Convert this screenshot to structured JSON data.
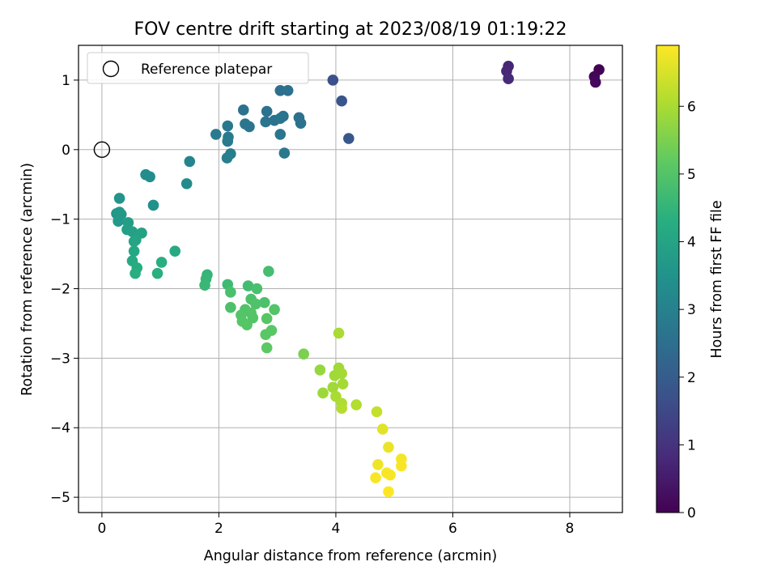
{
  "chart_data": {
    "type": "scatter",
    "title": "FOV centre drift starting at 2023/08/19 01:19:22",
    "xlabel": "Angular distance from reference (arcmin)",
    "ylabel": "Rotation from reference (arcmin)",
    "xlim": [
      -0.4,
      8.9
    ],
    "ylim": [
      -5.22,
      1.5
    ],
    "xticks": [
      0,
      2,
      4,
      6,
      8
    ],
    "yticks": [
      -5,
      -4,
      -3,
      -2,
      -1,
      0,
      1
    ],
    "grid": true,
    "legend": {
      "position": "top-left",
      "entries": [
        "Reference platepar"
      ]
    },
    "reference_point": {
      "x": 0,
      "y": 0
    },
    "colorbar": {
      "label": "Hours from first FF file",
      "colormap": "viridis",
      "range": [
        0,
        6.9
      ],
      "ticks": [
        0,
        1,
        2,
        3,
        4,
        5,
        6
      ]
    },
    "points": [
      {
        "x": 8.5,
        "y": 1.15,
        "c": 0.05
      },
      {
        "x": 8.42,
        "y": 1.05,
        "c": 0.1
      },
      {
        "x": 8.44,
        "y": 0.97,
        "c": 0.15
      },
      {
        "x": 6.95,
        "y": 1.2,
        "c": 0.7
      },
      {
        "x": 6.92,
        "y": 1.13,
        "c": 0.75
      },
      {
        "x": 6.95,
        "y": 1.02,
        "c": 0.8
      },
      {
        "x": 3.95,
        "y": 1.0,
        "c": 1.7
      },
      {
        "x": 4.1,
        "y": 0.7,
        "c": 1.8
      },
      {
        "x": 4.22,
        "y": 0.16,
        "c": 1.9
      },
      {
        "x": 3.05,
        "y": 0.85,
        "c": 2.5
      },
      {
        "x": 3.18,
        "y": 0.85,
        "c": 2.55
      },
      {
        "x": 2.42,
        "y": 0.57,
        "c": 2.6
      },
      {
        "x": 2.82,
        "y": 0.55,
        "c": 2.6
      },
      {
        "x": 3.37,
        "y": 0.46,
        "c": 2.55
      },
      {
        "x": 3.1,
        "y": 0.48,
        "c": 2.6
      },
      {
        "x": 2.95,
        "y": 0.42,
        "c": 2.6
      },
      {
        "x": 3.05,
        "y": 0.45,
        "c": 2.65
      },
      {
        "x": 2.8,
        "y": 0.4,
        "c": 2.65
      },
      {
        "x": 3.4,
        "y": 0.38,
        "c": 2.6
      },
      {
        "x": 2.45,
        "y": 0.37,
        "c": 2.7
      },
      {
        "x": 2.52,
        "y": 0.33,
        "c": 2.7
      },
      {
        "x": 2.15,
        "y": 0.34,
        "c": 2.75
      },
      {
        "x": 3.05,
        "y": 0.22,
        "c": 2.7
      },
      {
        "x": 1.95,
        "y": 0.22,
        "c": 2.8
      },
      {
        "x": 2.16,
        "y": 0.18,
        "c": 2.8
      },
      {
        "x": 2.15,
        "y": 0.12,
        "c": 2.85
      },
      {
        "x": 3.12,
        "y": -0.05,
        "c": 2.75
      },
      {
        "x": 2.2,
        "y": -0.06,
        "c": 2.9
      },
      {
        "x": 2.14,
        "y": -0.12,
        "c": 2.95
      },
      {
        "x": 1.5,
        "y": -0.17,
        "c": 3.1
      },
      {
        "x": 0.75,
        "y": -0.36,
        "c": 3.3
      },
      {
        "x": 0.82,
        "y": -0.39,
        "c": 3.35
      },
      {
        "x": 1.45,
        "y": -0.49,
        "c": 3.25
      },
      {
        "x": 0.3,
        "y": -0.7,
        "c": 3.55
      },
      {
        "x": 0.88,
        "y": -0.8,
        "c": 3.45
      },
      {
        "x": 0.25,
        "y": -0.92,
        "c": 3.6
      },
      {
        "x": 0.3,
        "y": -0.9,
        "c": 3.65
      },
      {
        "x": 0.33,
        "y": -0.93,
        "c": 3.7
      },
      {
        "x": 0.28,
        "y": -1.03,
        "c": 3.7
      },
      {
        "x": 0.45,
        "y": -1.05,
        "c": 3.8
      },
      {
        "x": 0.43,
        "y": -1.15,
        "c": 3.85
      },
      {
        "x": 0.52,
        "y": -1.18,
        "c": 3.9
      },
      {
        "x": 0.68,
        "y": -1.2,
        "c": 3.95
      },
      {
        "x": 0.58,
        "y": -1.3,
        "c": 4.0
      },
      {
        "x": 0.55,
        "y": -1.32,
        "c": 4.05
      },
      {
        "x": 0.55,
        "y": -1.46,
        "c": 4.1
      },
      {
        "x": 1.25,
        "y": -1.46,
        "c": 4.15
      },
      {
        "x": 0.52,
        "y": -1.6,
        "c": 4.2
      },
      {
        "x": 1.02,
        "y": -1.62,
        "c": 4.3
      },
      {
        "x": 0.6,
        "y": -1.7,
        "c": 4.25
      },
      {
        "x": 0.57,
        "y": -1.78,
        "c": 4.3
      },
      {
        "x": 0.95,
        "y": -1.78,
        "c": 4.35
      },
      {
        "x": 1.8,
        "y": -1.8,
        "c": 4.5
      },
      {
        "x": 1.78,
        "y": -1.86,
        "c": 4.55
      },
      {
        "x": 1.76,
        "y": -1.95,
        "c": 4.6
      },
      {
        "x": 2.15,
        "y": -1.94,
        "c": 4.7
      },
      {
        "x": 2.5,
        "y": -1.96,
        "c": 4.75
      },
      {
        "x": 2.85,
        "y": -1.75,
        "c": 4.8
      },
      {
        "x": 2.65,
        "y": -2.0,
        "c": 4.85
      },
      {
        "x": 2.2,
        "y": -2.05,
        "c": 4.85
      },
      {
        "x": 2.55,
        "y": -2.15,
        "c": 4.9
      },
      {
        "x": 2.78,
        "y": -2.2,
        "c": 4.9
      },
      {
        "x": 2.63,
        "y": -2.22,
        "c": 4.95
      },
      {
        "x": 2.2,
        "y": -2.27,
        "c": 4.9
      },
      {
        "x": 2.95,
        "y": -2.3,
        "c": 5.0
      },
      {
        "x": 2.45,
        "y": -2.3,
        "c": 4.95
      },
      {
        "x": 2.55,
        "y": -2.35,
        "c": 5.0
      },
      {
        "x": 2.38,
        "y": -2.38,
        "c": 5.0
      },
      {
        "x": 2.58,
        "y": -2.42,
        "c": 5.0
      },
      {
        "x": 2.82,
        "y": -2.43,
        "c": 5.05
      },
      {
        "x": 2.4,
        "y": -2.47,
        "c": 5.05
      },
      {
        "x": 2.48,
        "y": -2.52,
        "c": 5.05
      },
      {
        "x": 2.9,
        "y": -2.6,
        "c": 5.1
      },
      {
        "x": 2.8,
        "y": -2.66,
        "c": 5.1
      },
      {
        "x": 2.82,
        "y": -2.85,
        "c": 5.15
      },
      {
        "x": 3.45,
        "y": -2.94,
        "c": 5.5
      },
      {
        "x": 4.05,
        "y": -2.64,
        "c": 6.0
      },
      {
        "x": 3.73,
        "y": -3.17,
        "c": 5.8
      },
      {
        "x": 4.05,
        "y": -3.14,
        "c": 5.9
      },
      {
        "x": 4.1,
        "y": -3.22,
        "c": 5.95
      },
      {
        "x": 3.98,
        "y": -3.25,
        "c": 5.9
      },
      {
        "x": 4.12,
        "y": -3.37,
        "c": 5.95
      },
      {
        "x": 3.95,
        "y": -3.42,
        "c": 5.9
      },
      {
        "x": 3.78,
        "y": -3.5,
        "c": 5.85
      },
      {
        "x": 4.0,
        "y": -3.55,
        "c": 6.0
      },
      {
        "x": 4.1,
        "y": -3.65,
        "c": 6.05
      },
      {
        "x": 4.35,
        "y": -3.67,
        "c": 6.1
      },
      {
        "x": 4.1,
        "y": -3.72,
        "c": 6.1
      },
      {
        "x": 4.7,
        "y": -3.77,
        "c": 6.3
      },
      {
        "x": 4.8,
        "y": -4.02,
        "c": 6.6
      },
      {
        "x": 4.9,
        "y": -4.28,
        "c": 6.7
      },
      {
        "x": 5.12,
        "y": -4.45,
        "c": 6.8
      },
      {
        "x": 4.72,
        "y": -4.53,
        "c": 6.75
      },
      {
        "x": 5.12,
        "y": -4.55,
        "c": 6.85
      },
      {
        "x": 4.87,
        "y": -4.65,
        "c": 6.85
      },
      {
        "x": 4.93,
        "y": -4.68,
        "c": 6.85
      },
      {
        "x": 4.68,
        "y": -4.72,
        "c": 6.85
      },
      {
        "x": 4.9,
        "y": -4.92,
        "c": 6.9
      }
    ]
  }
}
